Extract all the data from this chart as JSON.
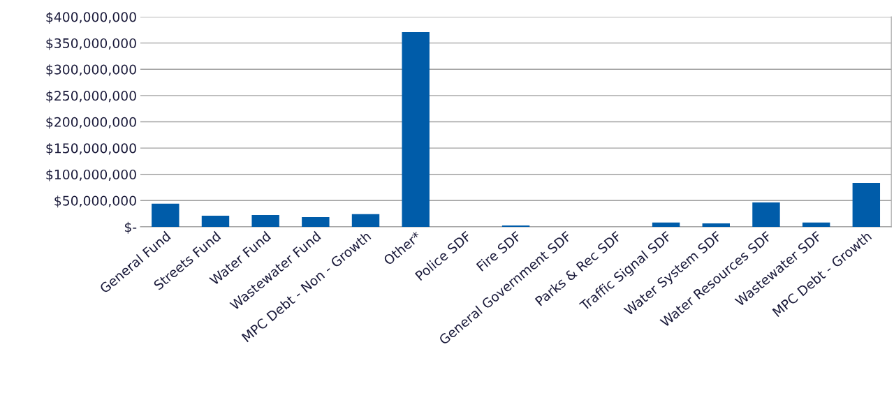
{
  "chart_data": {
    "type": "bar",
    "categories": [
      "General Fund",
      "Streets Fund",
      "Water Fund",
      "Wastewater Fund",
      "MPC Debt - Non - Growth",
      "Other*",
      "Police SDF",
      "Fire SDF",
      "General Government SDF",
      "Parks & Rec SDF",
      "Traffic Signal SDF",
      "Water System SDF",
      "Water Resources SDF",
      "Wastewater SDF",
      "MPC Debt - Growth"
    ],
    "values": [
      44000000,
      21000000,
      22500000,
      18500000,
      24000000,
      371000000,
      0,
      2500000,
      0,
      0,
      8000000,
      6500000,
      46500000,
      8000000,
      83500000
    ],
    "color": "#005ca9",
    "ylim": [
      0,
      400000000
    ],
    "yticks": [
      {
        "value": 0,
        "label": "$-"
      },
      {
        "value": 50000000,
        "label": "$50,000,000"
      },
      {
        "value": 100000000,
        "label": "$100,000,000"
      },
      {
        "value": 150000000,
        "label": "$150,000,000"
      },
      {
        "value": 200000000,
        "label": "$200,000,000"
      },
      {
        "value": 250000000,
        "label": "$250,000,000"
      },
      {
        "value": 300000000,
        "label": "$300,000,000"
      },
      {
        "value": 350000000,
        "label": "$350,000,000"
      },
      {
        "value": 400000000,
        "label": "$400,000,000"
      }
    ],
    "grid": "y"
  }
}
